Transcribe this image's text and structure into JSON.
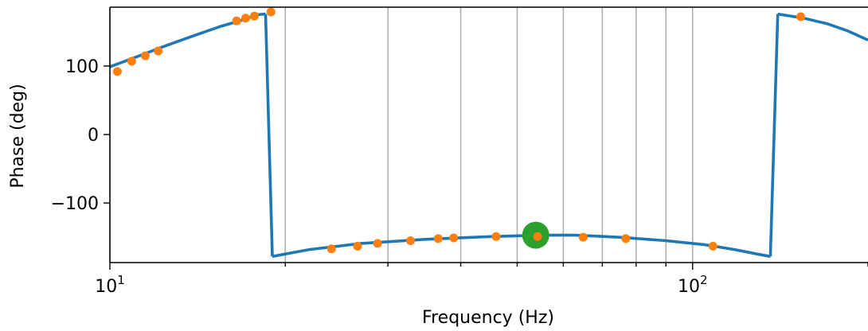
{
  "chart_data": {
    "type": "line",
    "title": "",
    "xlabel": "Frequency (Hz)",
    "ylabel": "Phase (deg)",
    "xscale": "log",
    "xlim": [
      10,
      200
    ],
    "ylim": [
      -187,
      186
    ],
    "grid": "x-major-and-minor",
    "xticks": [
      {
        "value": 10,
        "base": "10",
        "exp": "1"
      },
      {
        "value": 100,
        "base": "10",
        "exp": "2"
      }
    ],
    "yticks": [
      {
        "value": 100,
        "label": "100"
      },
      {
        "value": 0,
        "label": "0"
      },
      {
        "value": -100,
        "label": "−100"
      }
    ],
    "series": [
      {
        "kind": "line",
        "color": "#1f77b4",
        "segments": [
          [
            [
              10,
              99
            ],
            [
              11,
              112
            ],
            [
              12.5,
              130
            ],
            [
              14,
              145
            ],
            [
              15.5,
              158
            ],
            [
              17,
              168
            ],
            [
              17.9,
              175
            ],
            [
              18.5,
              176
            ]
          ],
          [
            [
              18.5,
              176
            ],
            [
              19.0,
              -178
            ]
          ],
          [
            [
              19.0,
              -178
            ],
            [
              22,
              -168
            ],
            [
              27,
              -159
            ],
            [
              35,
              -153
            ],
            [
              45,
              -149
            ],
            [
              55,
              -147
            ],
            [
              63,
              -147
            ],
            [
              75,
              -150
            ],
            [
              90,
              -155
            ],
            [
              105,
              -161
            ],
            [
              118,
              -168
            ],
            [
              130,
              -175
            ],
            [
              136,
              -178
            ]
          ],
          [
            [
              136,
              -178
            ],
            [
              140,
              176
            ]
          ],
          [
            [
              140,
              176
            ],
            [
              155,
              170
            ],
            [
              170,
              162
            ],
            [
              185,
              151
            ],
            [
              200,
              138
            ]
          ]
        ]
      },
      {
        "kind": "scatter",
        "color": "#ff7f0e",
        "x": [
          10.3,
          10.9,
          11.5,
          12.1,
          16.5,
          17.1,
          17.7,
          18.9,
          24.0,
          26.6,
          28.8,
          32.8,
          36.6,
          38.9,
          46.0,
          54.2,
          64.9,
          76.8,
          108.4,
          153.3
        ],
        "y": [
          92,
          107,
          115,
          122,
          166,
          170,
          173,
          179,
          -167,
          -163,
          -159,
          -155,
          -152,
          -151,
          -149,
          -149,
          -150,
          -152,
          -163,
          172
        ]
      },
      {
        "kind": "marker",
        "color": "#2ca02c",
        "x": [
          53.8
        ],
        "y": [
          -147
        ]
      }
    ]
  }
}
